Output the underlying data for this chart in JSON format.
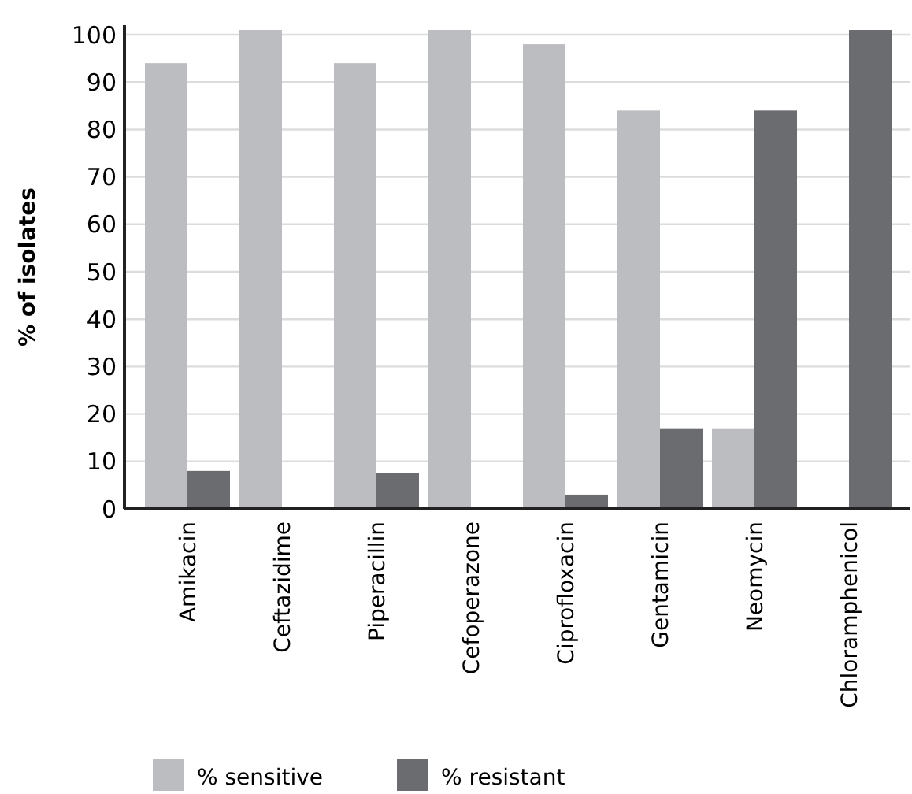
{
  "chart_data": {
    "type": "bar",
    "ylabel": "% of isolates",
    "categories": [
      "Amikacin",
      "Ceftazidime",
      "Piperacillin",
      "Cefoperazone",
      "Ciprofloxacin",
      "Gentamicin",
      "Neomycin",
      "Chloramphenicol"
    ],
    "series": [
      {
        "name": "% sensitive",
        "color": "#bcbdc1",
        "values": [
          94,
          101,
          94,
          101,
          98,
          84,
          17,
          0
        ]
      },
      {
        "name": "% resistant",
        "color": "#6b6c70",
        "values": [
          8,
          0,
          7.5,
          0,
          3,
          17,
          84,
          101
        ]
      }
    ],
    "ylim": [
      0,
      102
    ],
    "yticks": [
      0,
      10,
      20,
      30,
      40,
      50,
      60,
      70,
      80,
      90,
      100
    ],
    "grid": "y",
    "legend": "bottom left"
  }
}
